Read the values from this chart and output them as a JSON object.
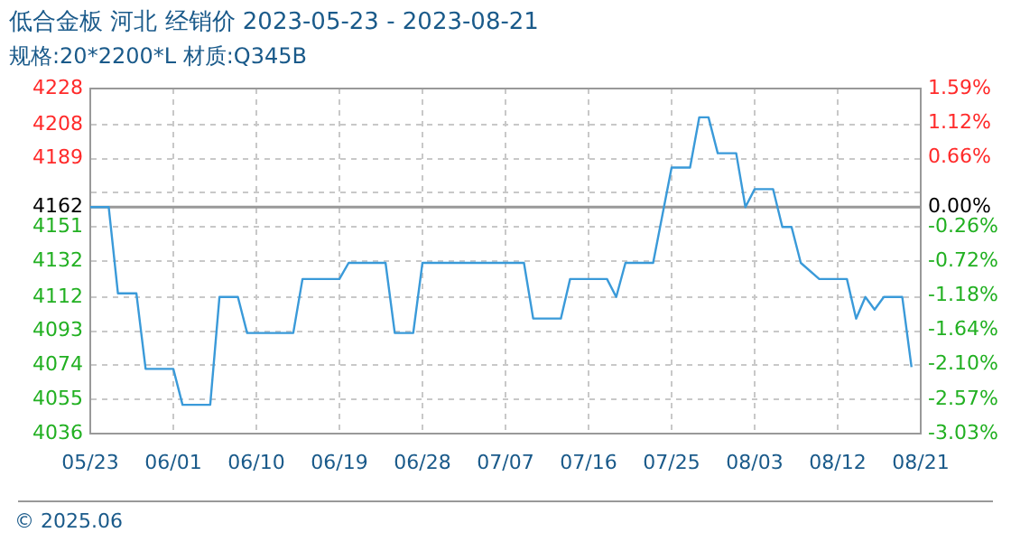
{
  "chart_data": {
    "type": "line",
    "title": "低合金板 河北 经销价 2023-05-23 - 2023-08-21",
    "subtitle": "规格:20*2200*L 材质:Q345B",
    "annotations": [
      "© 2025.06"
    ],
    "x": [
      "2023-05-23",
      "2023-05-25",
      "2023-05-26",
      "2023-05-28",
      "2023-05-29",
      "2023-06-01",
      "2023-06-02",
      "2023-06-05",
      "2023-06-06",
      "2023-06-08",
      "2023-06-09",
      "2023-06-14",
      "2023-06-15",
      "2023-06-19",
      "2023-06-20",
      "2023-06-24",
      "2023-06-25",
      "2023-06-27",
      "2023-06-28",
      "2023-07-09",
      "2023-07-10",
      "2023-07-13",
      "2023-07-14",
      "2023-07-18",
      "2023-07-19",
      "2023-07-20",
      "2023-07-23",
      "2023-07-25",
      "2023-07-27",
      "2023-07-28",
      "2023-07-29",
      "2023-07-30",
      "2023-08-01",
      "2023-08-02",
      "2023-08-03",
      "2023-08-05",
      "2023-08-06",
      "2023-08-07",
      "2023-08-08",
      "2023-08-10",
      "2023-08-13",
      "2023-08-14",
      "2023-08-15",
      "2023-08-16",
      "2023-08-17",
      "2023-08-19",
      "2023-08-20"
    ],
    "series": [
      {
        "color": "#3a9ad9",
        "values": [
          4162,
          4162,
          4114,
          4114,
          4072,
          4072,
          4052,
          4052,
          4112,
          4112,
          4092,
          4092,
          4122,
          4122,
          4131,
          4131,
          4092,
          4092,
          4131,
          4131,
          4100,
          4100,
          4122,
          4122,
          4112,
          4131,
          4131,
          4184,
          4184,
          4212,
          4212,
          4192,
          4192,
          4162,
          4172,
          4172,
          4151,
          4151,
          4131,
          4122,
          4122,
          4100,
          4112,
          4105,
          4112,
          4112,
          4073
        ]
      }
    ],
    "xlim": [
      "2023-05-23",
      "2023-08-21"
    ],
    "xticks": [
      {
        "value": "2023-05-23",
        "label": "05/23"
      },
      {
        "value": "2023-06-01",
        "label": "06/01"
      },
      {
        "value": "2023-06-10",
        "label": "06/10"
      },
      {
        "value": "2023-06-19",
        "label": "06/19"
      },
      {
        "value": "2023-06-28",
        "label": "06/28"
      },
      {
        "value": "2023-07-07",
        "label": "07/07"
      },
      {
        "value": "2023-07-16",
        "label": "07/16"
      },
      {
        "value": "2023-07-25",
        "label": "07/25"
      },
      {
        "value": "2023-08-03",
        "label": "08/03"
      },
      {
        "value": "2023-08-12",
        "label": "08/12"
      },
      {
        "value": "2023-08-21",
        "label": "08/21"
      }
    ],
    "ylim": [
      4036,
      4228
    ],
    "yticks": [
      4036,
      4055,
      4074,
      4093,
      4112,
      4132,
      4151,
      4162,
      {
        "value": 4170.4,
        "label": null
      },
      4189,
      4208,
      4228
    ],
    "y2lim": [
      -3.027,
      1.586
    ],
    "y2ticks": [
      {
        "value": -3.027,
        "label": "-3.03%"
      },
      {
        "value": -2.566,
        "label": "-2.57%"
      },
      {
        "value": -2.105,
        "label": "-2.10%"
      },
      {
        "value": -1.643,
        "label": "-1.64%"
      },
      {
        "value": -1.182,
        "label": "-1.18%"
      },
      {
        "value": -0.721,
        "label": "-0.72%"
      },
      {
        "value": -0.259,
        "label": "-0.26%"
      },
      {
        "value": 0,
        "label": "0.00%"
      },
      {
        "value": 0.202,
        "label": null
      },
      {
        "value": 0.663,
        "label": "0.66%"
      },
      {
        "value": 1.124,
        "label": "1.12%"
      },
      {
        "value": 1.586,
        "label": "1.59%"
      }
    ],
    "ref_lines": [
      {
        "axis": "y",
        "value": 4162,
        "color": "#999999"
      }
    ],
    "grid": true,
    "legend": false
  }
}
